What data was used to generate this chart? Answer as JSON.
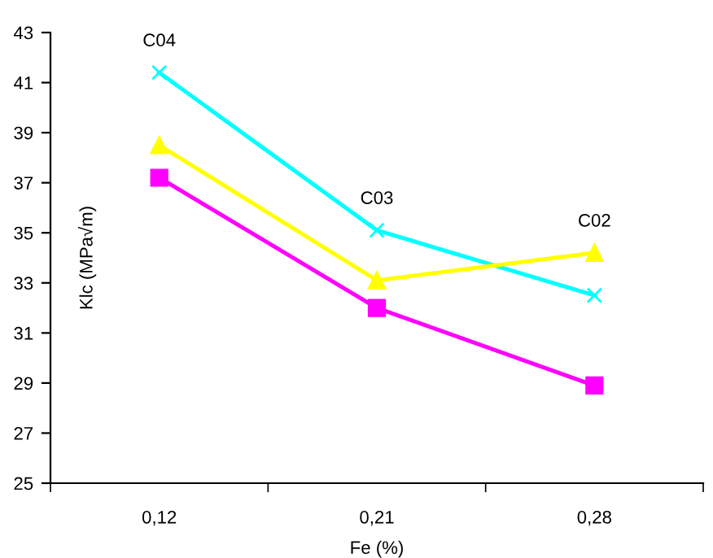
{
  "chart_data": {
    "type": "line",
    "xlabel": "Fe (%)",
    "ylabel": "Klc (MPa√m)",
    "categories": [
      "0,12",
      "0,21",
      "0,28"
    ],
    "series": [
      {
        "color": "#00ffff",
        "marker": "cross",
        "values": [
          41.4,
          35.1,
          32.5
        ]
      },
      {
        "color": "#ffff00",
        "marker": "triangle",
        "values": [
          38.5,
          33.1,
          34.2
        ]
      },
      {
        "color": "#ff00ff",
        "marker": "square",
        "values": [
          37.2,
          32.0,
          28.9
        ]
      }
    ],
    "annotations": [
      {
        "text": "C04",
        "x": "0,12",
        "y": 41.4
      },
      {
        "text": "C03",
        "x": "0,21",
        "y": 35.1
      },
      {
        "text": "C02",
        "x": "0,28",
        "y": 34.2
      }
    ],
    "ylim": [
      25,
      43
    ],
    "yticks": [
      25,
      27,
      29,
      31,
      33,
      35,
      37,
      39,
      41,
      43
    ],
    "grid": false,
    "legend": false
  }
}
